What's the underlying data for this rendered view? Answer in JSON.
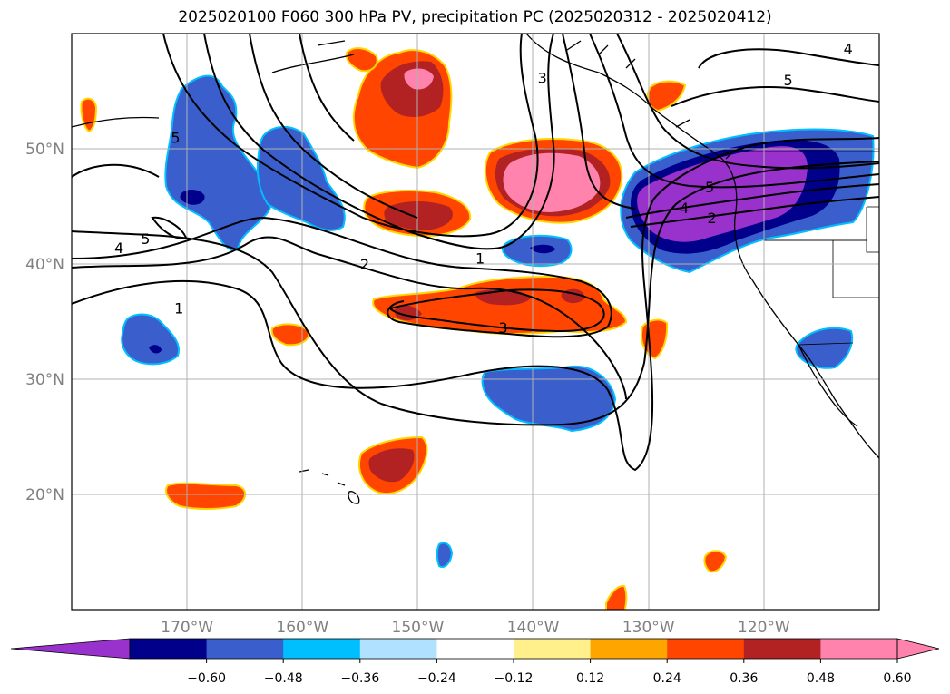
{
  "title": "2025020100 F060 300 hPa PV, precipitation PC (2025020312 - 2025020412)",
  "map": {
    "lon_range": [
      -180,
      -110
    ],
    "lat_range": [
      10,
      60
    ],
    "lon_labels": [
      {
        "lon": -170,
        "text": "170°W"
      },
      {
        "lon": -160,
        "text": "160°W"
      },
      {
        "lon": -150,
        "text": "150°W"
      },
      {
        "lon": -140,
        "text": "140°W"
      },
      {
        "lon": -130,
        "text": "130°W"
      },
      {
        "lon": -120,
        "text": "120°W"
      }
    ],
    "lat_labels": [
      {
        "lat": 50,
        "text": "50°N"
      },
      {
        "lat": 40,
        "text": "40°N"
      },
      {
        "lat": 30,
        "text": "30°N"
      },
      {
        "lat": 20,
        "text": "20°N"
      }
    ],
    "contour_labels": [
      {
        "text": "4",
        "lon": -175.9,
        "lat": 41.4
      },
      {
        "text": "5",
        "lon": -173.6,
        "lat": 42.2
      },
      {
        "text": "5",
        "lon": -171.0,
        "lat": 51.0
      },
      {
        "text": "1",
        "lon": -170.7,
        "lat": 36.2
      },
      {
        "text": "2",
        "lon": -154.6,
        "lat": 40.0
      },
      {
        "text": "1",
        "lon": -144.6,
        "lat": 40.5
      },
      {
        "text": "3",
        "lon": -142.6,
        "lat": 34.5
      },
      {
        "text": "3",
        "lon": -139.2,
        "lat": 56.2
      },
      {
        "text": "4",
        "lon": -112.7,
        "lat": 58.7
      },
      {
        "text": "5",
        "lon": -117.9,
        "lat": 56.0
      },
      {
        "text": "4",
        "lon": -126.9,
        "lat": 44.9
      },
      {
        "text": "5",
        "lon": -124.7,
        "lat": 46.7
      },
      {
        "text": "2",
        "lon": -124.5,
        "lat": 44.0
      }
    ]
  },
  "colorbar": {
    "colors": [
      "#9932cc",
      "#00008b",
      "#3a5fcd",
      "#00bfff",
      "#b0e2ff",
      "#ffffff",
      "#fff08c",
      "#ffa500",
      "#ff4500",
      "#b22222",
      "#ff83ac",
      "#ff83ac"
    ],
    "ticks": [
      "−0.60",
      "−0.48",
      "−0.36",
      "−0.24",
      "−0.12",
      "0.12",
      "0.24",
      "0.36",
      "0.48",
      "0.60"
    ]
  }
}
